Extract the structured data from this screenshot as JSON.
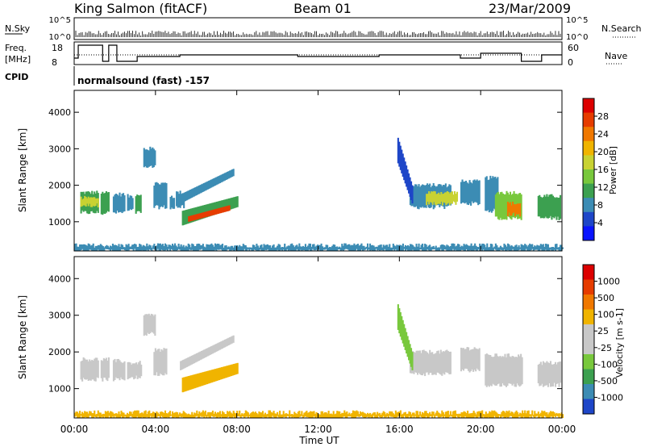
{
  "header": {
    "station": "King Salmon (fitACF)",
    "beam": "Beam 01",
    "date": "23/Mar/2009"
  },
  "top_panels": {
    "nsky_label": "N.Sky",
    "nsky_ticks": [
      "10^5",
      "10^0"
    ],
    "nsearch_label": "N.Search",
    "nsearch_ticks": [
      "10^5",
      "10^0"
    ],
    "freq_label_line1": "Freq.",
    "freq_label_line2": "[MHz]",
    "freq_ticks": [
      "18",
      "8"
    ],
    "nave_label": "Nave",
    "nave_ticks": [
      "60",
      "0"
    ],
    "cpid_label": "CPID",
    "cpid_text": "normalsound (fast) -157"
  },
  "chart_data": [
    {
      "type": "heatmap",
      "name": "power-panel",
      "ylabel": "Slant Range [km]",
      "xlabel": "",
      "ylim": [
        200,
        4600
      ],
      "yticks": [
        1000,
        2000,
        3000,
        4000
      ],
      "xlim_hours": [
        0,
        24
      ],
      "colorbar": {
        "label": "Power [dB]",
        "ticks": [
          "4",
          "8",
          "12",
          "16",
          "20",
          "24",
          "28"
        ],
        "colors": [
          "#0a14ff",
          "#1e46c8",
          "#3c8cb4",
          "#3ca050",
          "#78c83c",
          "#c8d232",
          "#f0b400",
          "#f07800",
          "#e63c00",
          "#dc0000"
        ]
      },
      "regions": [
        {
          "t": [
            0.3,
            1.2
          ],
          "r": [
            1250,
            1800
          ],
          "color": "#3ca050"
        },
        {
          "t": [
            0.3,
            1.2
          ],
          "r": [
            1450,
            1650
          ],
          "color": "#c8d232"
        },
        {
          "t": [
            1.3,
            1.7
          ],
          "r": [
            1250,
            1800
          ],
          "color": "#3ca050"
        },
        {
          "t": [
            1.9,
            2.5
          ],
          "r": [
            1250,
            1750
          ],
          "color": "#3c8cb4"
        },
        {
          "t": [
            2.6,
            2.9
          ],
          "r": [
            1300,
            1700
          ],
          "color": "#3c8cb4"
        },
        {
          "t": [
            3.0,
            3.3
          ],
          "r": [
            1250,
            1750
          ],
          "color": "#3ca050"
        },
        {
          "t": [
            3.9,
            4.5
          ],
          "r": [
            1400,
            2050
          ],
          "color": "#3c8cb4"
        },
        {
          "t": [
            3.4,
            4.0
          ],
          "r": [
            2500,
            3000
          ],
          "color": "#3c8cb4"
        },
        {
          "t": [
            4.7,
            4.9
          ],
          "r": [
            1400,
            1700
          ],
          "color": "#3c8cb4"
        },
        {
          "t": [
            5.0,
            5.4
          ],
          "r": [
            1400,
            1800
          ],
          "color": "#3c8cb4"
        },
        {
          "t": [
            16.5,
            18.5
          ],
          "r": [
            1400,
            2000
          ],
          "color": "#3c8cb4"
        },
        {
          "t": [
            17.3,
            18.8
          ],
          "r": [
            1500,
            1800
          ],
          "color": "#c8d232"
        },
        {
          "t": [
            19.0,
            19.9
          ],
          "r": [
            1500,
            2100
          ],
          "color": "#3c8cb4"
        },
        {
          "t": [
            20.2,
            20.8
          ],
          "r": [
            1300,
            2200
          ],
          "color": "#3c8cb4"
        },
        {
          "t": [
            20.7,
            22.0
          ],
          "r": [
            1100,
            1800
          ],
          "color": "#78c83c"
        },
        {
          "t": [
            21.3,
            21.9
          ],
          "r": [
            1200,
            1500
          ],
          "color": "#f07800"
        },
        {
          "t": [
            22.8,
            23.9
          ],
          "r": [
            1100,
            1700
          ],
          "color": "#3ca050"
        },
        {
          "t": [
            0.0,
            24.0
          ],
          "r": [
            200,
            350
          ],
          "color": "#3c8cb4"
        }
      ],
      "bands": [
        {
          "t": [
            5.3,
            8.0
          ],
          "r_start": [
            900,
            1300
          ],
          "r_end": [
            1400,
            1700
          ],
          "color": "#3ca050"
        },
        {
          "t": [
            5.6,
            7.6
          ],
          "r_start": [
            1000,
            1150
          ],
          "r_end": [
            1300,
            1450
          ],
          "color": "#e63c00"
        },
        {
          "t": [
            5.2,
            7.8
          ],
          "r_start": [
            1500,
            1750
          ],
          "r_end": [
            2250,
            2450
          ],
          "color": "#3c8cb4"
        },
        {
          "t": [
            15.9,
            16.6
          ],
          "r_start": [
            2600,
            3300
          ],
          "r_end": [
            1500,
            2000
          ],
          "color": "#1e46c8"
        }
      ]
    },
    {
      "type": "heatmap",
      "name": "velocity-panel",
      "ylabel": "Slant Range [km]",
      "xlabel": "Time UT",
      "ylim": [
        200,
        4600
      ],
      "yticks": [
        1000,
        2000,
        3000,
        4000
      ],
      "xlim_hours": [
        0,
        24
      ],
      "xticklabels": [
        "00:00",
        "04:00",
        "08:00",
        "12:00",
        "16:00",
        "20:00",
        "00:00"
      ],
      "colorbar": {
        "label": "Velocity [m s-1]",
        "ticks": [
          "1000",
          "500",
          "100",
          "25",
          "-25",
          "-100",
          "-500",
          "-1000"
        ],
        "colors": [
          "#1e46c8",
          "#3c8cb4",
          "#3ca050",
          "#78c83c",
          "#c8c8c8",
          "#c8c8c8",
          "#f0b400",
          "#f07800",
          "#e63c00",
          "#dc0000"
        ]
      },
      "regions": [
        {
          "t": [
            0.3,
            1.2
          ],
          "r": [
            1250,
            1800
          ],
          "color": "#c8c8c8"
        },
        {
          "t": [
            1.3,
            1.7
          ],
          "r": [
            1250,
            1800
          ],
          "color": "#c8c8c8"
        },
        {
          "t": [
            1.9,
            2.5
          ],
          "r": [
            1250,
            1750
          ],
          "color": "#c8c8c8"
        },
        {
          "t": [
            2.6,
            3.3
          ],
          "r": [
            1300,
            1700
          ],
          "color": "#c8c8c8"
        },
        {
          "t": [
            3.9,
            4.5
          ],
          "r": [
            1400,
            2050
          ],
          "color": "#c8c8c8"
        },
        {
          "t": [
            3.4,
            4.0
          ],
          "r": [
            2500,
            3000
          ],
          "color": "#c8c8c8"
        },
        {
          "t": [
            16.5,
            18.5
          ],
          "r": [
            1400,
            2000
          ],
          "color": "#c8c8c8"
        },
        {
          "t": [
            19.0,
            19.9
          ],
          "r": [
            1500,
            2100
          ],
          "color": "#c8c8c8"
        },
        {
          "t": [
            20.2,
            22.0
          ],
          "r": [
            1100,
            1900
          ],
          "color": "#c8c8c8"
        },
        {
          "t": [
            22.8,
            23.9
          ],
          "r": [
            1100,
            1700
          ],
          "color": "#c8c8c8"
        },
        {
          "t": [
            0.0,
            24.0
          ],
          "r": [
            200,
            350
          ],
          "color": "#f0b400"
        }
      ],
      "bands": [
        {
          "t": [
            5.3,
            8.0
          ],
          "r_start": [
            900,
            1300
          ],
          "r_end": [
            1400,
            1700
          ],
          "color": "#f0b400"
        },
        {
          "t": [
            5.2,
            7.8
          ],
          "r_start": [
            1500,
            1750
          ],
          "r_end": [
            2250,
            2450
          ],
          "color": "#c8c8c8"
        },
        {
          "t": [
            15.9,
            16.6
          ],
          "r_start": [
            2600,
            3300
          ],
          "r_end": [
            1500,
            2000
          ],
          "color": "#78c83c"
        }
      ]
    }
  ]
}
